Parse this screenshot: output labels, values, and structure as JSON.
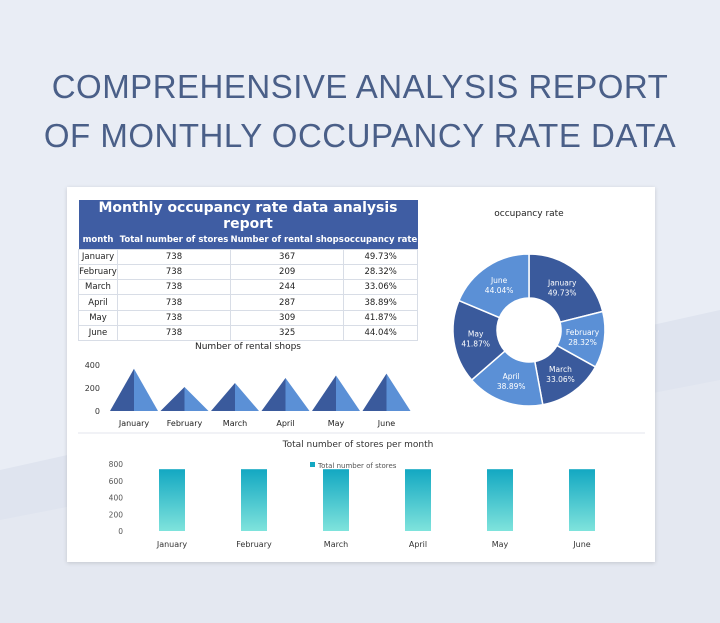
{
  "page": {
    "title_line1": "COMPREHENSIVE ANALYSIS REPORT",
    "title_line2": "OF MONTHLY OCCUPANCY RATE DATA"
  },
  "table": {
    "title": "Monthly occupancy rate data analysis report",
    "headers": [
      "month",
      "Total number of stores",
      "Number of rental shops",
      "occupancy rate"
    ],
    "rows": [
      [
        "January",
        "738",
        "367",
        "49.73%"
      ],
      [
        "February",
        "738",
        "209",
        "28.32%"
      ],
      [
        "March",
        "738",
        "244",
        "33.06%"
      ],
      [
        "April",
        "738",
        "287",
        "38.89%"
      ],
      [
        "May",
        "738",
        "309",
        "41.87%"
      ],
      [
        "June",
        "738",
        "325",
        "44.04%"
      ]
    ]
  },
  "colors": {
    "header": "#3f5da3",
    "dark": "#3a5a9c",
    "light": "#5b90d6",
    "teal_top": "#13a8c2",
    "teal_bottom": "#7fe3dc"
  },
  "chart_data": [
    {
      "type": "pie",
      "title": "occupancy rate",
      "donut": true,
      "categories": [
        "January",
        "February",
        "March",
        "April",
        "May",
        "June"
      ],
      "values": [
        49.73,
        28.32,
        33.06,
        38.89,
        41.87,
        44.04
      ],
      "labels": [
        "49.73%",
        "28.32%",
        "33.06%",
        "38.89%",
        "41.87%",
        "44.04%"
      ]
    },
    {
      "type": "bar",
      "style": "pyramid",
      "title": "Number of rental shops",
      "categories": [
        "January",
        "February",
        "March",
        "April",
        "May",
        "June"
      ],
      "values": [
        367,
        209,
        244,
        287,
        309,
        325
      ],
      "ylim": [
        0,
        400
      ],
      "yticks": [
        "0",
        "200",
        "400"
      ]
    },
    {
      "type": "bar",
      "title": "Total number of stores per month",
      "categories": [
        "January",
        "February",
        "March",
        "April",
        "May",
        "June"
      ],
      "series": [
        {
          "name": "Total number of stores",
          "values": [
            738,
            738,
            738,
            738,
            738,
            738
          ]
        }
      ],
      "ylim": [
        0,
        800
      ],
      "yticks": [
        "0",
        "200",
        "400",
        "600",
        "800"
      ],
      "legend": "top-center"
    }
  ]
}
